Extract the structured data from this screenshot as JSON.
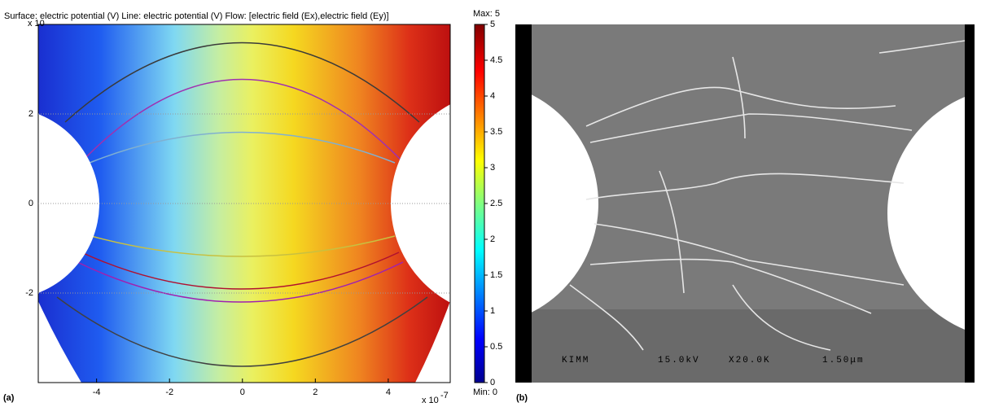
{
  "figure_a": {
    "panel_label": "(a)",
    "title": "Surface: electric potential (V)  Line: electric potential (V)  Flow: [electric field (Ex),electric field (Ey)]",
    "y_multiplier": "x 10",
    "x_multiplier": "x 10",
    "x_exponent": "-7",
    "xlim": [
      -5.6,
      5.7
    ],
    "ylim": [
      -4,
      4
    ],
    "xticks": [
      -4,
      -2,
      0,
      2,
      4
    ],
    "yticks": [
      -2,
      0,
      2
    ],
    "colorbar": {
      "lim": [
        0,
        5
      ],
      "ticks": [
        0,
        0.5,
        1,
        1.5,
        2,
        2.5,
        3,
        3.5,
        4,
        4.5,
        5
      ],
      "max_label": "Max: 5",
      "min_label": "Min: 0"
    }
  },
  "figure_b": {
    "panel_label": "(b)",
    "scale_texts": [
      "KIMM",
      "15.0kV",
      "X20.0K",
      "1.50μm"
    ]
  }
}
